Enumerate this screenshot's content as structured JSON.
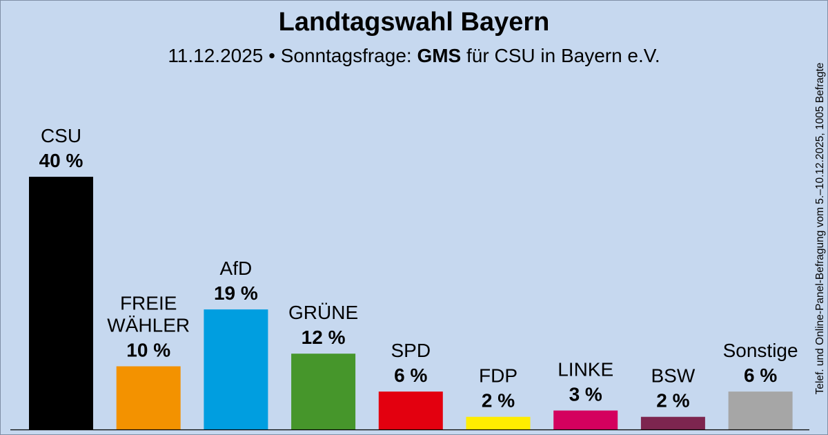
{
  "title": "Landtagswahl Bayern",
  "subtitle": {
    "date": "11.12.2025",
    "bullet": "•",
    "prefix": "Sonntagsfrage:",
    "institute": "GMS",
    "suffix": "für CSU in Bayern e.V."
  },
  "side_note": "Telef. und Online-Panel-Befragung vom 5.–10.12.2025, 1005 Befragte",
  "chart_data": {
    "type": "bar",
    "title": "Landtagswahl Bayern",
    "categories": [
      "CSU",
      "FREIE WÄHLER",
      "AfD",
      "GRÜNE",
      "SPD",
      "FDP",
      "LINKE",
      "BSW",
      "Sonstige"
    ],
    "label_lines": [
      [
        "CSU"
      ],
      [
        "FREIE",
        "WÄHLER"
      ],
      [
        "AfD"
      ],
      [
        "GRÜNE"
      ],
      [
        "SPD"
      ],
      [
        "FDP"
      ],
      [
        "LINKE"
      ],
      [
        "BSW"
      ],
      [
        "Sonstige"
      ]
    ],
    "values": [
      40,
      10,
      19,
      12,
      6,
      2,
      3,
      2,
      6
    ],
    "value_labels": [
      "40 %",
      "10 %",
      "19 %",
      "12 %",
      "6 %",
      "2 %",
      "3 %",
      "2 %",
      "6 %"
    ],
    "colors": [
      "#000000",
      "#f39200",
      "#009ee0",
      "#46962b",
      "#e3000f",
      "#ffed00",
      "#d4005e",
      "#7d254f",
      "#a6a6a6"
    ],
    "unit": "%",
    "ylim": [
      0,
      40
    ],
    "xlabel": "",
    "ylabel": "",
    "grid": false,
    "legend": "none"
  }
}
